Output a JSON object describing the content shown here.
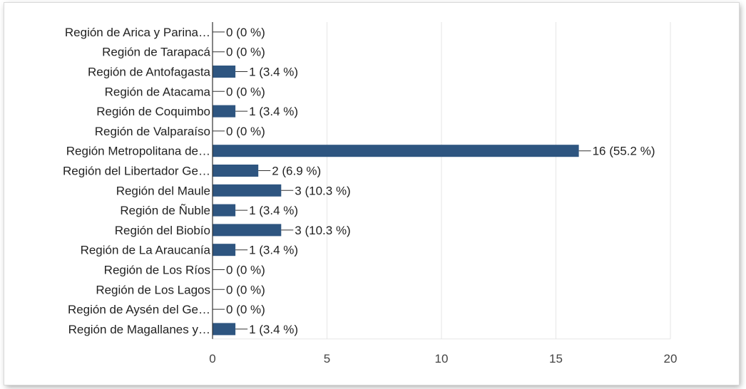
{
  "chart_data": {
    "type": "bar",
    "orientation": "horizontal",
    "categories": [
      "Región de Arica y Parina…",
      "Región de Tarapacá",
      "Región de Antofagasta",
      "Región de Atacama",
      "Región de Coquimbo",
      "Región de Valparaíso",
      "Región Metropolitana de…",
      "Región del Libertador Ge…",
      "Región del Maule",
      "Región de Ñuble",
      "Región del Biobío",
      "Región de La Araucanía",
      "Región de Los Ríos",
      "Región de Los Lagos",
      "Región de Aysén del Ge…",
      "Región de Magallanes y…"
    ],
    "values": [
      0,
      0,
      1,
      0,
      1,
      0,
      16,
      2,
      3,
      1,
      3,
      1,
      0,
      0,
      0,
      1
    ],
    "value_labels": [
      "0 (0 %)",
      "0 (0 %)",
      "1 (3.4 %)",
      "0 (0 %)",
      "1 (3.4 %)",
      "0 (0 %)",
      "16 (55.2 %)",
      "2 (6.9 %)",
      "3 (10.3 %)",
      "1 (3.4 %)",
      "3 (10.3 %)",
      "1 (3.4 %)",
      "0 (0 %)",
      "0 (0 %)",
      "0 (0 %)",
      "1 (3.4 %)"
    ],
    "xlim": [
      0,
      20
    ],
    "xticks": [
      0,
      5,
      10,
      15,
      20
    ],
    "xtick_labels": [
      "0",
      "5",
      "10",
      "15",
      "20"
    ],
    "grid": true,
    "colors": {
      "bar": "#2e5580",
      "grid": "#e6e6e6",
      "axis": "#333333",
      "leader": "#333333"
    }
  }
}
